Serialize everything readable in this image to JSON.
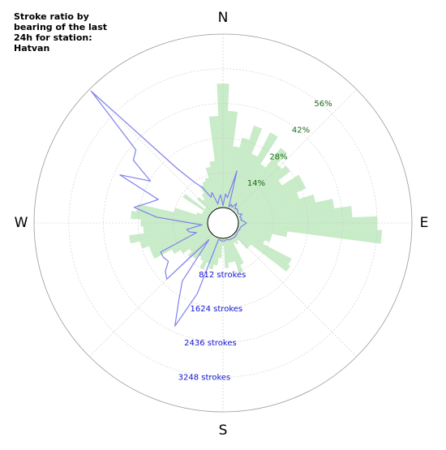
{
  "chart_data": {
    "type": "polar-bar",
    "title": "Stroke ratio by bearing of the last 24h for station: Hatvan",
    "directions": [
      "N",
      "E",
      "S",
      "W"
    ],
    "ratio_ticks": [
      "14%",
      "28%",
      "42%",
      "56%"
    ],
    "ratio_tick_values": [
      14,
      28,
      42,
      56
    ],
    "count_ticks": [
      "812 strokes",
      "1624 strokes",
      "2436 strokes",
      "3248 strokes"
    ],
    "count_tick_values": [
      812,
      1624,
      2436,
      3248
    ],
    "ratio_max": 70,
    "count_max": 4060,
    "bin_width_deg": 5,
    "series": [
      {
        "name": "stroke ratio",
        "kind": "bar",
        "color": "#c8ebc8",
        "bearings": [
          0,
          5,
          10,
          15,
          20,
          25,
          30,
          35,
          40,
          45,
          50,
          55,
          60,
          65,
          70,
          75,
          80,
          85,
          90,
          95,
          100,
          105,
          110,
          115,
          120,
          125,
          130,
          135,
          140,
          145,
          150,
          155,
          160,
          165,
          170,
          175,
          180,
          185,
          190,
          195,
          200,
          205,
          210,
          215,
          220,
          225,
          230,
          235,
          240,
          245,
          250,
          255,
          260,
          265,
          270,
          275,
          280,
          285,
          290,
          295,
          300,
          305,
          310,
          315,
          320,
          325,
          330,
          335,
          340,
          345,
          350,
          355
        ],
        "values": [
          50,
          39,
          25,
          29,
          35,
          24,
          35,
          22,
          32,
          26,
          28,
          22,
          30,
          30,
          26,
          32,
          39,
          46,
          56,
          58,
          20,
          14,
          14,
          12,
          25,
          26,
          8,
          8,
          3,
          4,
          3,
          12,
          15,
          10,
          10,
          12,
          3,
          8,
          11,
          13,
          11,
          14,
          11,
          10,
          12,
          13,
          11,
          14,
          17,
          25,
          25,
          28,
          32,
          26,
          27,
          31,
          29,
          14,
          5,
          3,
          3,
          13,
          3,
          8,
          6,
          8,
          11,
          12,
          13,
          17,
          19,
          37
        ]
      },
      {
        "name": "stroke count",
        "kind": "line",
        "color": "#8080ee",
        "bearings": [
          0,
          5,
          10,
          15,
          20,
          25,
          30,
          35,
          40,
          45,
          50,
          55,
          60,
          65,
          70,
          75,
          80,
          85,
          90,
          95,
          100,
          105,
          110,
          115,
          120,
          125,
          130,
          135,
          140,
          145,
          150,
          155,
          160,
          165,
          170,
          175,
          180,
          185,
          190,
          195,
          200,
          205,
          210,
          215,
          220,
          225,
          230,
          235,
          240,
          245,
          250,
          255,
          260,
          265,
          270,
          275,
          280,
          285,
          290,
          295,
          300,
          305,
          310,
          315,
          320,
          325,
          330,
          335,
          340,
          345,
          350,
          355
        ],
        "values": [
          50,
          320,
          240,
          900,
          40,
          120,
          60,
          200,
          70,
          110,
          90,
          60,
          60,
          130,
          60,
          90,
          60,
          120,
          190,
          130,
          80,
          60,
          60,
          50,
          40,
          40,
          60,
          60,
          70,
          60,
          60,
          60,
          60,
          40,
          40,
          60,
          60,
          60,
          40,
          40,
          1400,
          2300,
          1700,
          1300,
          150,
          1500,
          1400,
          1200,
          1250,
          1250,
          300,
          450,
          500,
          130,
          400,
          1200,
          1750,
          1450,
          1250,
          2300,
          1600,
          2200,
          2300,
          4000,
          1300,
          800,
          600,
          300,
          400,
          100,
          200,
          300
        ]
      }
    ],
    "grid": true
  }
}
